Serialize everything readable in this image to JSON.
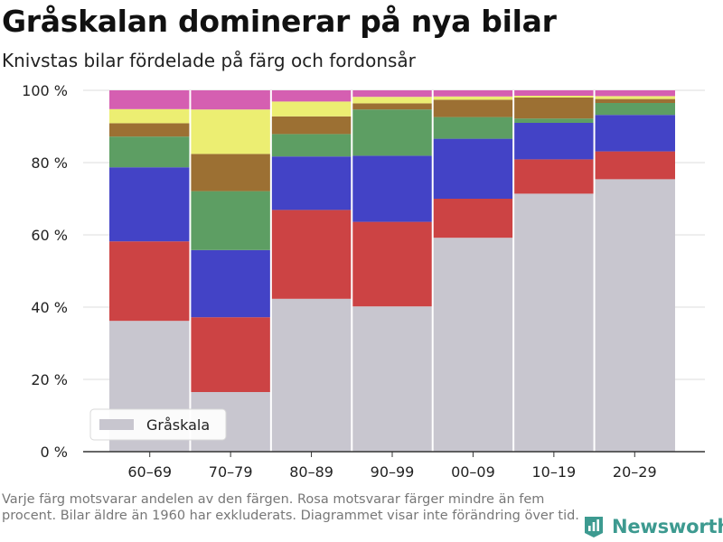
{
  "header": {
    "title": "Gråskalan dominerar på nya bilar",
    "subtitle": "Knivstas bilar fördelade på färg och fordonsår"
  },
  "footnote": "Varje färg motsvarar andelen av den färgen. Rosa motsvarar färger mindre än fem procent. Bilar äldre än 1960 har exkluderats. Diagrammet visar inte förändring över tid.",
  "brand": {
    "name": "Newsworthy",
    "icon": "newsworthy-logo-icon",
    "color": "#3d9a90"
  },
  "chart_data": {
    "type": "bar",
    "stacked": true,
    "categories": [
      "60–69",
      "70–79",
      "80–89",
      "90–99",
      "00–09",
      "10–19",
      "20–29"
    ],
    "y_tick_values": [
      0,
      20,
      40,
      60,
      80,
      100
    ],
    "y_tick_labels": [
      "0 %",
      "20 %",
      "40 %",
      "60 %",
      "80 %",
      "100 %"
    ],
    "ylim": [
      0,
      100
    ],
    "grid": true,
    "legend": {
      "position": "bottom-left",
      "entries": [
        "Gråskala"
      ]
    },
    "series": [
      {
        "name": "Gråskala",
        "color": "#c8c6cf",
        "values": [
          36.2,
          16.5,
          42.3,
          40.2,
          59.2,
          71.4,
          75.4
        ]
      },
      {
        "color": "#cc4344",
        "values": [
          22.0,
          20.7,
          24.6,
          23.4,
          10.8,
          9.5,
          7.7
        ]
      },
      {
        "color": "#4343c6",
        "values": [
          20.5,
          18.6,
          14.8,
          18.3,
          16.6,
          10.1,
          10.1
        ]
      },
      {
        "color": "#5d9e63",
        "values": [
          8.5,
          16.3,
          6.2,
          12.8,
          6.0,
          1.2,
          3.3
        ]
      },
      {
        "color": "#9c7033",
        "values": [
          3.7,
          10.3,
          4.9,
          1.7,
          4.8,
          5.8,
          1.1
        ]
      },
      {
        "color": "#ecee72",
        "values": [
          3.9,
          12.3,
          4.1,
          1.8,
          0.9,
          0.5,
          0.8
        ]
      },
      {
        "color": "#d55fb1",
        "values": [
          5.2,
          5.3,
          3.1,
          1.8,
          1.7,
          1.5,
          1.6
        ]
      }
    ]
  }
}
